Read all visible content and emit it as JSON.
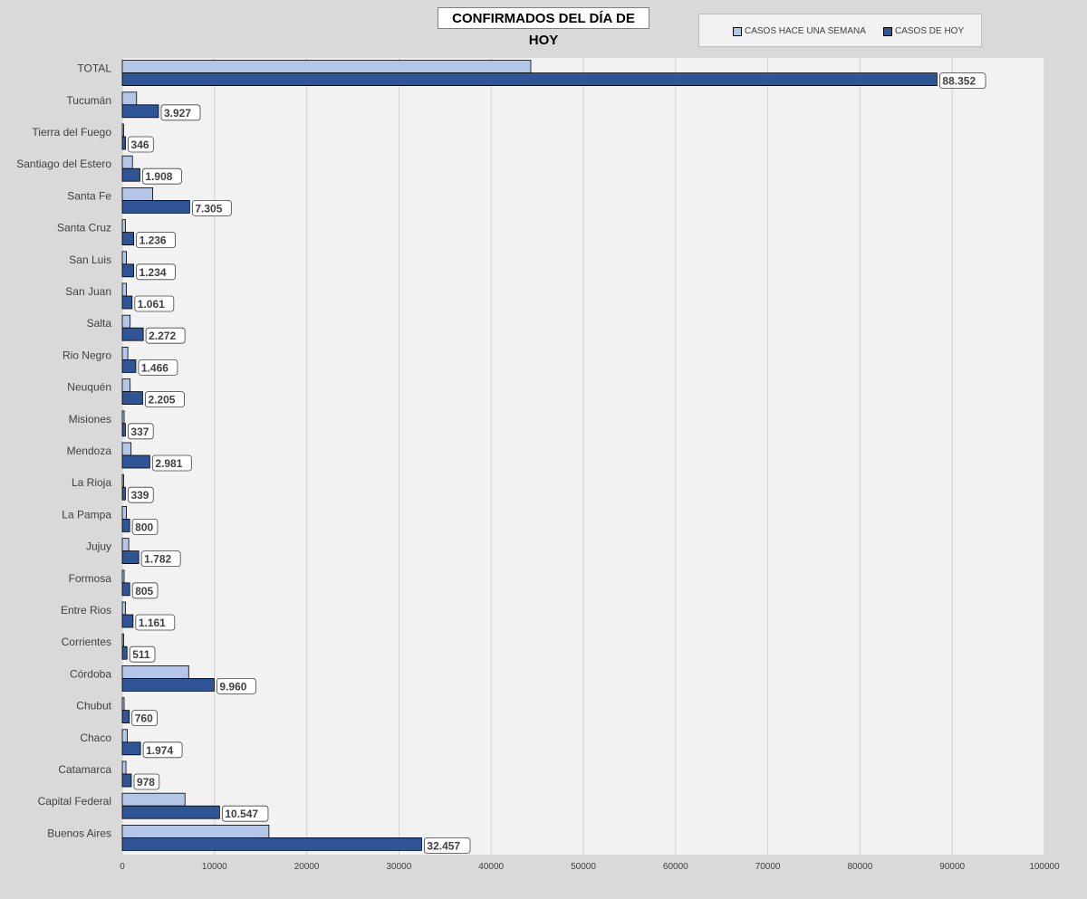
{
  "chart_data": {
    "type": "bar",
    "orientation": "horizontal",
    "title": "CONFIRMADOS DEL DÍA DE HOY",
    "categories": [
      "TOTAL",
      "Tucumán",
      "Tierra del Fuego",
      "Santiago del Estero",
      "Santa Fe",
      "Santa Cruz",
      "San Luis",
      "San Juan",
      "Salta",
      "Rio Negro",
      "Neuquén",
      "Misiones",
      "Mendoza",
      "La Rioja",
      "La Pampa",
      "Jujuy",
      "Formosa",
      "Entre Rios",
      "Corrientes",
      "Córdoba",
      "Chubut",
      "Chaco",
      "Catamarca",
      "Capital Federal",
      "Buenos Aires"
    ],
    "series": [
      {
        "name": "CASOS HACE UNA SEMANA",
        "color": "#b4c6e7",
        "values": [
          44300,
          1550,
          150,
          1100,
          3300,
          350,
          450,
          450,
          850,
          600,
          850,
          200,
          950,
          150,
          450,
          700,
          200,
          350,
          150,
          7200,
          200,
          550,
          400,
          6800,
          15900
        ]
      },
      {
        "name": "CASOS DE HOY",
        "color": "#2f5597",
        "values": [
          88352,
          3927,
          346,
          1908,
          7305,
          1236,
          1234,
          1061,
          2272,
          1466,
          2205,
          337,
          2981,
          339,
          800,
          1782,
          805,
          1161,
          511,
          9960,
          760,
          1974,
          978,
          10547,
          32457
        ],
        "data_labels": [
          "88.352",
          "3.927",
          "346",
          "1.908",
          "7.305",
          "1.236",
          "1.234",
          "1.061",
          "2.272",
          "1.466",
          "2.205",
          "337",
          "2.981",
          "339",
          "800",
          "1.782",
          "805",
          "1.161",
          "511",
          "9.960",
          "760",
          "1.974",
          "978",
          "10.547",
          "32.457"
        ]
      }
    ],
    "xlim": [
      0,
      100000
    ],
    "xticks": [
      0,
      10000,
      20000,
      30000,
      40000,
      50000,
      60000,
      70000,
      80000,
      90000,
      100000
    ],
    "xtick_labels": [
      "0",
      "10000",
      "20000",
      "30000",
      "40000",
      "50000",
      "60000",
      "70000",
      "80000",
      "90000",
      "100000"
    ],
    "grid": "vertical",
    "legend": "top-right",
    "background": "#d9d9d9",
    "plot_background": "#f2f2f2"
  }
}
